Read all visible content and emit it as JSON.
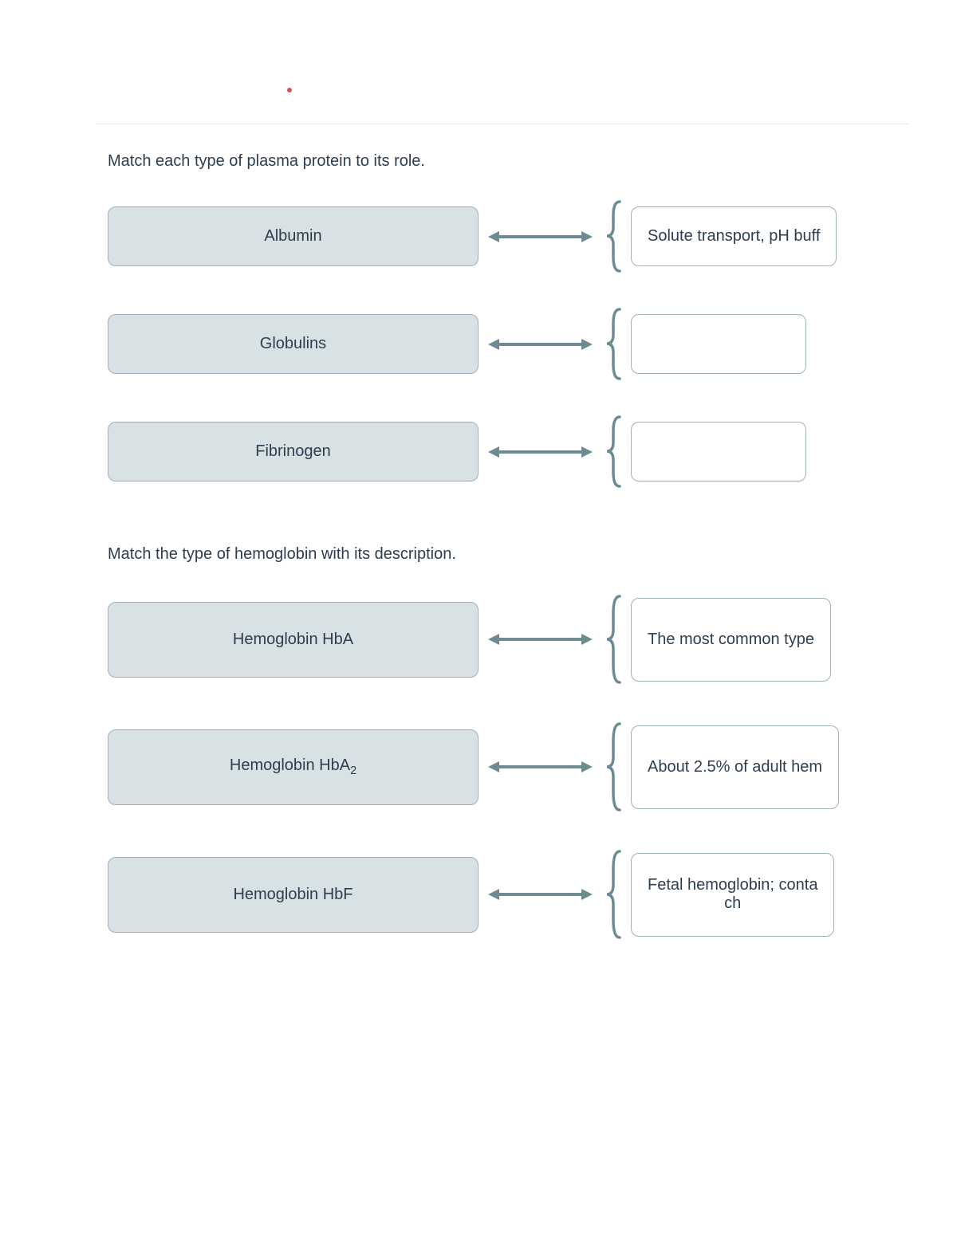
{
  "colors": {
    "card_bg": "#d8e1e3",
    "card_border": "#9fb3b8",
    "text": "#2c3e50",
    "connector": "#6d8b93",
    "divider": "#e5e5e5",
    "red_dot": "#d9534f"
  },
  "sections": [
    {
      "prompt": "Match each type of plasma protein to its role.",
      "rows": [
        {
          "left": "Albumin",
          "right": "Solute transport, pH buff",
          "tall": false
        },
        {
          "left": "Globulins",
          "right": "",
          "tall": false
        },
        {
          "left": "Fibrinogen",
          "right": "",
          "tall": false
        }
      ]
    },
    {
      "prompt": "Match the type of hemoglobin with its description.",
      "rows": [
        {
          "left": "Hemoglobin HbA",
          "right": "The most common type",
          "tall": true
        },
        {
          "left": "Hemoglobin HbA|2|",
          "right": "About 2.5% of adult hem",
          "tall": true
        },
        {
          "left": "Hemoglobin HbF",
          "right": "Fetal hemoglobin; conta\nch",
          "tall": true
        }
      ]
    }
  ]
}
